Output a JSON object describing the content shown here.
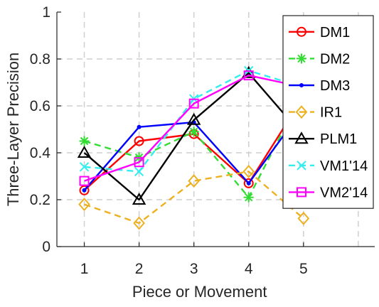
{
  "chart_data": {
    "type": "line",
    "title": "",
    "xlabel": "Piece or Movement",
    "ylabel": "Three-Layer Precision",
    "x": [
      1,
      2,
      3,
      4,
      5
    ],
    "x_ticks": [
      "1",
      "2",
      "3",
      "4",
      "5"
    ],
    "y_ticks": [
      "0",
      "0.2",
      "0.4",
      "0.6",
      "0.8",
      "1"
    ],
    "xlim": [
      0.5,
      6.3
    ],
    "ylim": [
      0,
      1
    ],
    "grid": true,
    "legend_position": "top-right",
    "series": [
      {
        "name": "DM1",
        "values": [
          0.24,
          0.45,
          0.48,
          0.27,
          0.64
        ],
        "color": "#ff0000",
        "dash": "solid",
        "marker": "circle"
      },
      {
        "name": "DM2",
        "values": [
          0.45,
          0.38,
          0.49,
          0.21,
          0.66
        ],
        "color": "#33dd33",
        "dash": "dashed",
        "marker": "asterisk"
      },
      {
        "name": "DM3",
        "values": [
          0.24,
          0.51,
          0.53,
          0.27,
          0.59
        ],
        "color": "#0000ff",
        "dash": "solid",
        "marker": "dot"
      },
      {
        "name": "IR1",
        "values": [
          0.18,
          0.1,
          0.28,
          0.32,
          0.12
        ],
        "color": "#edb120",
        "dash": "dashed",
        "marker": "diamond"
      },
      {
        "name": "PLM1",
        "values": [
          0.4,
          0.2,
          0.54,
          0.74,
          0.47
        ],
        "color": "#000000",
        "dash": "solid",
        "marker": "triangle"
      },
      {
        "name": "VM1'14",
        "values": [
          0.34,
          0.32,
          0.63,
          0.75,
          0.68
        ],
        "color": "#33eeee",
        "dash": "dashed",
        "marker": "x"
      },
      {
        "name": "VM2'14",
        "values": [
          0.28,
          0.36,
          0.61,
          0.73,
          0.68
        ],
        "color": "#ff00ff",
        "dash": "solid",
        "marker": "square"
      }
    ]
  }
}
